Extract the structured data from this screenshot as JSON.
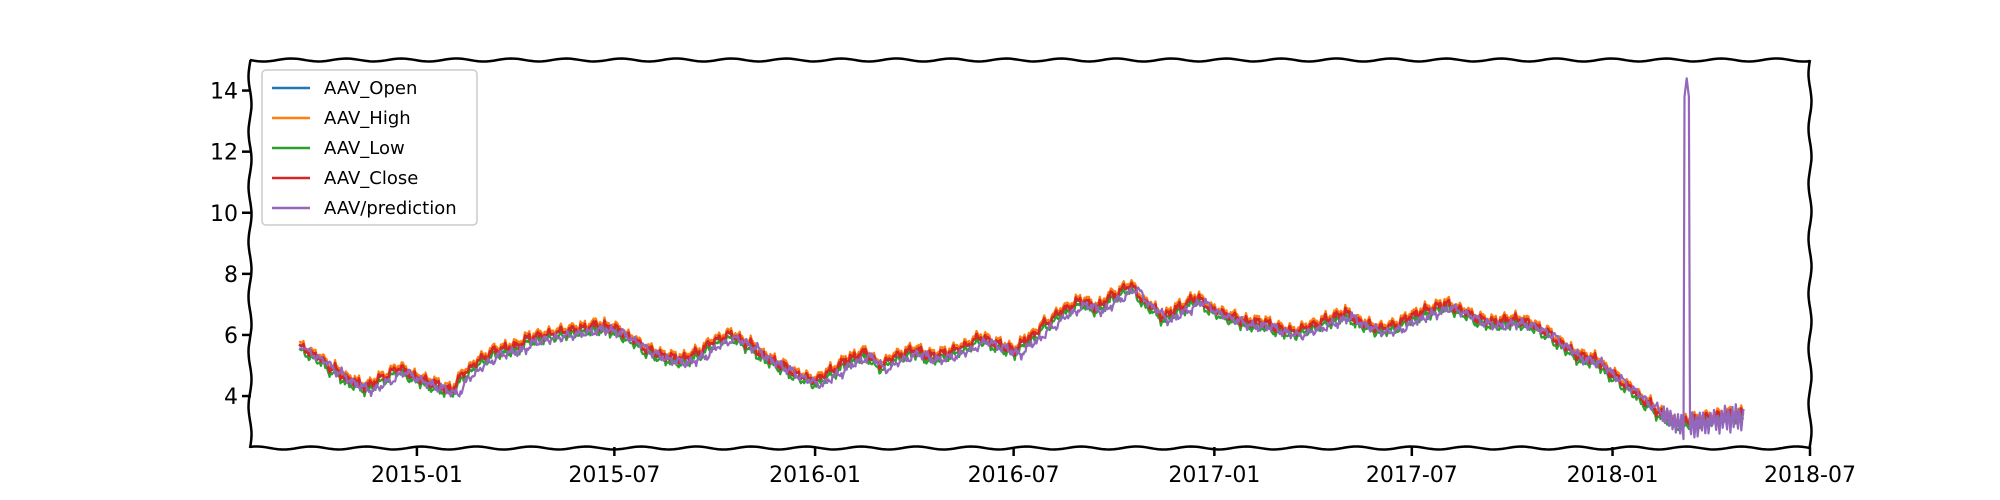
{
  "chart_data": {
    "type": "line",
    "title": "",
    "xlabel": "",
    "ylabel": "",
    "xlim": [
      "2014-08-01",
      "2018-07-01"
    ],
    "ylim": [
      2.3,
      15.0
    ],
    "x_ticks": [
      "2015-01",
      "2015-07",
      "2016-01",
      "2016-07",
      "2017-01",
      "2017-07",
      "2018-01",
      "2018-07"
    ],
    "y_ticks": [
      4,
      6,
      8,
      10,
      12,
      14
    ],
    "grid": false,
    "legend_placement": "top-left",
    "series": [
      {
        "name": "AAV_Open",
        "color": "#1f77b4",
        "offset": 0.0
      },
      {
        "name": "AAV_High",
        "color": "#ff7f0e",
        "offset": 0.12
      },
      {
        "name": "AAV_Low",
        "color": "#2ca02c",
        "offset": -0.13
      },
      {
        "name": "AAV_Close",
        "color": "#d62728",
        "offset": 0.02
      },
      {
        "name": "AAV/prediction",
        "color": "#9467bd",
        "offset": -0.12
      }
    ],
    "x": [
      "2014-09-15",
      "2014-10-01",
      "2014-10-15",
      "2014-11-01",
      "2014-11-15",
      "2014-12-01",
      "2014-12-15",
      "2015-01-01",
      "2015-01-15",
      "2015-02-01",
      "2015-02-15",
      "2015-03-01",
      "2015-03-15",
      "2015-04-01",
      "2015-04-15",
      "2015-05-01",
      "2015-05-15",
      "2015-06-01",
      "2015-06-15",
      "2015-07-01",
      "2015-07-15",
      "2015-08-01",
      "2015-08-15",
      "2015-09-01",
      "2015-09-15",
      "2015-10-01",
      "2015-10-15",
      "2015-11-01",
      "2015-11-15",
      "2015-12-01",
      "2015-12-15",
      "2016-01-01",
      "2016-01-15",
      "2016-02-01",
      "2016-02-15",
      "2016-03-01",
      "2016-03-15",
      "2016-04-01",
      "2016-04-15",
      "2016-05-01",
      "2016-05-15",
      "2016-06-01",
      "2016-06-15",
      "2016-07-01",
      "2016-07-15",
      "2016-08-01",
      "2016-08-15",
      "2016-09-01",
      "2016-09-15",
      "2016-10-01",
      "2016-10-15",
      "2016-11-01",
      "2016-11-15",
      "2016-12-01",
      "2016-12-15",
      "2017-01-01",
      "2017-01-15",
      "2017-02-01",
      "2017-02-15",
      "2017-03-01",
      "2017-03-15",
      "2017-04-01",
      "2017-04-15",
      "2017-05-01",
      "2017-05-15",
      "2017-06-01",
      "2017-06-15",
      "2017-07-01",
      "2017-07-15",
      "2017-08-01",
      "2017-08-15",
      "2017-09-01",
      "2017-09-15",
      "2017-10-01",
      "2017-10-15",
      "2017-11-01",
      "2017-11-15",
      "2017-12-01",
      "2017-12-15",
      "2018-01-01",
      "2018-01-15",
      "2018-02-01",
      "2018-02-15",
      "2018-03-01",
      "2018-03-15",
      "2018-04-01",
      "2018-04-15",
      "2018-05-01"
    ],
    "close": [
      5.6,
      5.3,
      4.9,
      4.5,
      4.3,
      4.6,
      4.9,
      4.6,
      4.4,
      4.2,
      4.8,
      5.2,
      5.5,
      5.6,
      5.9,
      6.0,
      6.1,
      6.2,
      6.3,
      6.2,
      5.9,
      5.5,
      5.3,
      5.2,
      5.4,
      5.8,
      6.0,
      5.7,
      5.3,
      5.0,
      4.7,
      4.5,
      4.8,
      5.2,
      5.4,
      5.0,
      5.3,
      5.5,
      5.3,
      5.4,
      5.6,
      5.9,
      5.7,
      5.5,
      5.9,
      6.4,
      6.8,
      7.1,
      6.9,
      7.3,
      7.6,
      7.0,
      6.6,
      6.9,
      7.2,
      6.8,
      6.6,
      6.4,
      6.4,
      6.2,
      6.1,
      6.3,
      6.5,
      6.7,
      6.4,
      6.2,
      6.3,
      6.6,
      6.8,
      7.0,
      6.8,
      6.5,
      6.4,
      6.5,
      6.4,
      6.1,
      5.7,
      5.3,
      5.2,
      4.7,
      4.3,
      3.8,
      3.4,
      3.1,
      3.2,
      3.3,
      3.4,
      3.4
    ],
    "prediction_spike": {
      "x": "2018-03-10",
      "peak": 14.4
    }
  }
}
